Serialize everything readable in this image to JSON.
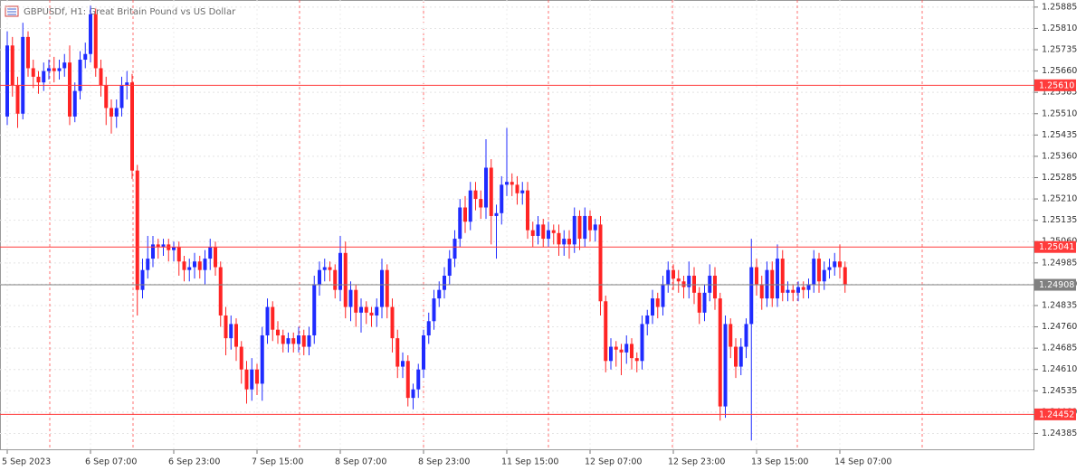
{
  "chart_data": {
    "type": "candlestick",
    "title": "GBPUSDf, H1:  Great Britain Pound vs US Dollar",
    "up_color": "#1f2bff",
    "down_color": "#ff2424",
    "grid": true,
    "ylim": [
      1.24326,
      1.2591
    ],
    "yticks": [
      1.25885,
      {
        "value": 1.2581,
        "label": "1.25810"
      },
      1.25735,
      {
        "value": 1.2566,
        "label": "1.25660"
      },
      1.25585,
      {
        "value": 1.2551,
        "label": "1.25510"
      },
      1.25435,
      {
        "value": 1.2536,
        "label": "1.25360"
      },
      1.25285,
      {
        "value": 1.2521,
        "label": "1.25210"
      },
      1.25135,
      {
        "value": 1.2506,
        "label": "1.25060"
      },
      1.24985,
      {
        "value": 1.2491,
        "label": "1.24910"
      },
      1.24835,
      {
        "value": 1.2476,
        "label": "1.24760"
      },
      1.24685,
      {
        "value": 1.2461,
        "label": "1.24610"
      },
      1.24535,
      {
        "value": 1.2446,
        "label": "1.24460"
      },
      1.24385
    ],
    "levels": [
      {
        "value": 1.2561,
        "label": "1.25610",
        "color": "#ff3b3b"
      },
      {
        "value": 1.25041,
        "label": "1.25041",
        "color": "#ff3b3b"
      },
      {
        "value": 1.24908,
        "label": "1.24908",
        "color": "#808080"
      },
      {
        "value": 1.24452,
        "label": "1.24452",
        "color": "#ff3b3b"
      }
    ],
    "categories": [
      "5 Sep 2023",
      null,
      null,
      null,
      null,
      null,
      null,
      null,
      null,
      null,
      null,
      null,
      null,
      null,
      null,
      null,
      "6 Sep 07:00",
      null,
      null,
      null,
      null,
      null,
      null,
      null,
      null,
      null,
      null,
      null,
      null,
      null,
      null,
      null,
      "6 Sep 23:00",
      null,
      null,
      null,
      null,
      null,
      null,
      null,
      null,
      null,
      null,
      null,
      null,
      null,
      null,
      null,
      "7 Sep 15:00",
      null,
      null,
      null,
      null,
      null,
      null,
      null,
      null,
      null,
      null,
      null,
      null,
      null,
      null,
      null,
      "8 Sep 07:00",
      null,
      null,
      null,
      null,
      null,
      null,
      null,
      null,
      null,
      null,
      null,
      null,
      null,
      null,
      null,
      "8 Sep 23:00",
      null,
      null,
      null,
      null,
      null,
      null,
      null,
      null,
      null,
      null,
      null,
      null,
      null,
      null,
      null,
      "11 Sep 15:00",
      null,
      null,
      null,
      null,
      null,
      null,
      null,
      null,
      null,
      null,
      null,
      null,
      null,
      null,
      null,
      "12 Sep 07:00",
      null,
      null,
      null,
      null,
      null,
      null,
      null,
      null,
      null,
      null,
      null,
      null,
      null,
      null,
      null,
      "12 Sep 23:00",
      null,
      null,
      null,
      null,
      null,
      null,
      null,
      null,
      null,
      null,
      null,
      null,
      null,
      null,
      null,
      "13 Sep 15:00",
      null,
      null,
      null,
      null,
      null,
      null,
      null,
      null,
      null,
      null,
      null,
      null,
      null,
      null,
      null,
      "14 Sep 07:00",
      null
    ],
    "open": [
      1.255,
      1.2575,
      1.2561,
      1.2551,
      1.2578,
      1.2567,
      1.2564,
      1.2562,
      1.2566,
      1.2567,
      1.2566,
      1.2567,
      1.2569,
      1.255,
      1.2559,
      1.257,
      1.2572,
      1.2586,
      1.2567,
      1.2561,
      1.2553,
      1.255,
      1.2553,
      1.2561,
      1.2562,
      1.2531,
      1.2489,
      1.2496,
      1.25,
      1.2505,
      1.2504,
      1.2505,
      1.2503,
      1.2504,
      1.2499,
      1.2496,
      1.2497,
      1.2499,
      1.2496,
      1.25,
      1.2504,
      1.2497,
      1.248,
      1.2472,
      1.2477,
      1.2469,
      1.2461,
      1.2454,
      1.2461,
      1.2456,
      1.2473,
      1.2483,
      1.2475,
      1.2473,
      1.247,
      1.2472,
      1.247,
      1.2473,
      1.2469,
      1.2473,
      1.2491,
      1.2496,
      1.2497,
      1.2496,
      1.2489,
      1.2502,
      1.2483,
      1.2489,
      1.2481,
      1.2483,
      1.2481,
      1.248,
      1.2483,
      1.2496,
      1.2483,
      1.2472,
      1.2462,
      1.2464,
      1.2451,
      1.2454,
      1.2461,
      1.2473,
      1.2478,
      1.2486,
      1.2489,
      1.2494,
      1.25,
      1.2507,
      1.2518,
      1.2513,
      1.2524,
      1.2521,
      1.2518,
      1.2532,
      1.2515,
      1.2516,
      1.2526,
      1.2527,
      1.2526,
      1.2523,
      1.2524,
      1.251,
      1.2508,
      1.2512,
      1.2507,
      1.251,
      1.2509,
      1.2505,
      1.2507,
      1.2505,
      1.2515,
      1.2507,
      1.2515,
      1.251,
      1.2512,
      1.2485,
      1.2464,
      1.2469,
      1.2468,
      1.2467,
      1.247,
      1.2465,
      1.2464,
      1.2477,
      1.248,
      1.2486,
      1.2483,
      1.2491,
      1.2496,
      1.2493,
      1.2492,
      1.249,
      1.2494,
      1.2488,
      1.2481,
      1.2488,
      1.2494,
      1.2486,
      1.2448,
      1.2477,
      1.2469,
      1.2462,
      1.2469,
      1.2477,
      1.2497,
      1.2491,
      1.2486,
      1.2496,
      1.2486,
      1.25,
      1.2488,
      1.2489,
      1.2488,
      1.249,
      1.2489,
      1.2491,
      1.25,
      1.2492,
      1.2496,
      1.2497,
      1.2499,
      1.2497
    ],
    "high": [
      1.258,
      1.2578,
      1.2564,
      1.2583,
      1.258,
      1.257,
      1.2566,
      1.2569,
      1.257,
      1.2571,
      1.257,
      1.2572,
      1.2575,
      1.2562,
      1.2573,
      1.2576,
      1.2589,
      1.2588,
      1.257,
      1.2564,
      1.2556,
      1.2556,
      1.2564,
      1.2566,
      1.2565,
      1.2533,
      1.25,
      1.2508,
      1.2508,
      1.2507,
      1.2507,
      1.2507,
      1.2506,
      1.2506,
      1.2501,
      1.25,
      1.2502,
      1.2501,
      1.2503,
      1.2507,
      1.2506,
      1.2499,
      1.2483,
      1.248,
      1.2479,
      1.2471,
      1.2464,
      1.2465,
      1.2463,
      1.2476,
      1.2486,
      1.2485,
      1.2478,
      1.2475,
      1.2474,
      1.2474,
      1.2476,
      1.2475,
      1.2476,
      1.2494,
      1.2499,
      1.25,
      1.2499,
      1.2498,
      1.2508,
      1.2506,
      1.2492,
      1.2491,
      1.2486,
      1.2485,
      1.2483,
      1.2486,
      1.25,
      1.2498,
      1.2486,
      1.2475,
      1.2467,
      1.2466,
      1.2456,
      1.2463,
      1.2475,
      1.2481,
      1.2489,
      1.2492,
      1.2497,
      1.2503,
      1.251,
      1.2521,
      1.2522,
      1.2527,
      1.2527,
      1.2524,
      1.2542,
      1.2535,
      1.2519,
      1.2529,
      1.2546,
      1.253,
      1.2529,
      1.2527,
      1.2527,
      1.2513,
      1.2515,
      1.2514,
      1.2513,
      1.2512,
      1.2512,
      1.251,
      1.251,
      1.2518,
      1.2517,
      1.2518,
      1.2517,
      1.2514,
      1.2515,
      1.2487,
      1.2472,
      1.2471,
      1.247,
      1.2473,
      1.2472,
      1.2467,
      1.248,
      1.2482,
      1.2489,
      1.2488,
      1.2494,
      1.2499,
      1.2498,
      1.2496,
      1.2494,
      1.2499,
      1.2497,
      1.249,
      1.2491,
      1.2498,
      1.2497,
      1.2488,
      1.248,
      1.2479,
      1.2472,
      1.2472,
      1.2479,
      1.2507,
      1.25,
      1.2494,
      1.2499,
      1.2499,
      1.2505,
      1.2503,
      1.2492,
      1.2491,
      1.2492,
      1.2492,
      1.2493,
      1.2503,
      1.2502,
      1.2499,
      1.25,
      1.2502,
      1.2505,
      1.2499
    ],
    "low": [
      1.2547,
      1.2557,
      1.2546,
      1.2549,
      1.2564,
      1.256,
      1.2558,
      1.2559,
      1.2563,
      1.2562,
      1.2563,
      1.2564,
      1.2547,
      1.2548,
      1.2556,
      1.2567,
      1.2569,
      1.2564,
      1.2557,
      1.2547,
      1.2544,
      1.2546,
      1.255,
      1.2556,
      1.2528,
      1.248,
      1.2486,
      1.2493,
      1.2497,
      1.25,
      1.2501,
      1.2499,
      1.2499,
      1.2494,
      1.2492,
      1.2492,
      1.2493,
      1.2493,
      1.2491,
      1.2496,
      1.2494,
      1.2476,
      1.2466,
      1.2468,
      1.2464,
      1.2456,
      1.2449,
      1.245,
      1.2452,
      1.245,
      1.247,
      1.2471,
      1.247,
      1.2467,
      1.2467,
      1.2467,
      1.2467,
      1.2466,
      1.2466,
      1.247,
      1.2487,
      1.2492,
      1.2492,
      1.2486,
      1.2485,
      1.2479,
      1.2478,
      1.2476,
      1.2474,
      1.2477,
      1.2476,
      1.2476,
      1.2479,
      1.2479,
      1.2467,
      1.2458,
      1.2458,
      1.2448,
      1.2447,
      1.2451,
      1.2458,
      1.247,
      1.2475,
      1.2483,
      1.2486,
      1.2491,
      1.2497,
      1.2504,
      1.2509,
      1.251,
      1.2517,
      1.2514,
      1.2514,
      1.2505,
      1.25,
      1.2512,
      1.2522,
      1.2522,
      1.2519,
      1.2519,
      1.2507,
      1.2504,
      1.2505,
      1.2504,
      1.2504,
      1.2505,
      1.2501,
      1.2501,
      1.25,
      1.2502,
      1.2503,
      1.2504,
      1.2506,
      1.2506,
      1.248,
      1.246,
      1.2461,
      1.2462,
      1.2459,
      1.2463,
      1.2461,
      1.246,
      1.2461,
      1.2473,
      1.2477,
      1.2479,
      1.248,
      1.2488,
      1.2489,
      1.2488,
      1.2486,
      1.2486,
      1.2484,
      1.2477,
      1.2478,
      1.2485,
      1.2482,
      1.2443,
      1.2444,
      1.2465,
      1.2458,
      1.2459,
      1.2465,
      1.2436,
      1.2487,
      1.2482,
      1.2483,
      1.2483,
      1.2483,
      1.2485,
      1.2485,
      1.2485,
      1.2485,
      1.2486,
      1.2486,
      1.2488,
      1.2488,
      1.2489,
      1.2493,
      1.2494,
      1.2493,
      1.2488
    ],
    "close": [
      1.2575,
      1.2561,
      1.2551,
      1.2578,
      1.2567,
      1.2564,
      1.2562,
      1.2566,
      1.2567,
      1.2566,
      1.2567,
      1.2569,
      1.255,
      1.2559,
      1.257,
      1.2572,
      1.2586,
      1.2567,
      1.2561,
      1.2553,
      1.255,
      1.2553,
      1.2561,
      1.2562,
      1.2531,
      1.2489,
      1.2496,
      1.25,
      1.2505,
      1.2504,
      1.2505,
      1.2503,
      1.2504,
      1.2499,
      1.2496,
      1.2497,
      1.2499,
      1.2496,
      1.25,
      1.2504,
      1.2497,
      1.248,
      1.2472,
      1.2477,
      1.2469,
      1.2461,
      1.2454,
      1.2461,
      1.2456,
      1.2473,
      1.2483,
      1.2475,
      1.2473,
      1.247,
      1.2472,
      1.247,
      1.2473,
      1.2469,
      1.2473,
      1.2491,
      1.2496,
      1.2497,
      1.2496,
      1.2489,
      1.2502,
      1.2483,
      1.2489,
      1.2481,
      1.2483,
      1.2481,
      1.248,
      1.2483,
      1.2496,
      1.2483,
      1.2472,
      1.2462,
      1.2464,
      1.2451,
      1.2454,
      1.2461,
      1.2473,
      1.2478,
      1.2486,
      1.2489,
      1.2494,
      1.25,
      1.2507,
      1.2518,
      1.2513,
      1.2524,
      1.2521,
      1.2518,
      1.2532,
      1.2515,
      1.2516,
      1.2526,
      1.2527,
      1.2526,
      1.2523,
      1.2524,
      1.251,
      1.2508,
      1.2512,
      1.2507,
      1.251,
      1.2509,
      1.2505,
      1.2507,
      1.2505,
      1.2515,
      1.2507,
      1.2515,
      1.251,
      1.2512,
      1.2485,
      1.2464,
      1.2469,
      1.2468,
      1.2467,
      1.247,
      1.2465,
      1.2464,
      1.2477,
      1.248,
      1.2486,
      1.2483,
      1.2491,
      1.2496,
      1.2493,
      1.2492,
      1.249,
      1.2494,
      1.2488,
      1.2481,
      1.2488,
      1.2494,
      1.2486,
      1.2448,
      1.2477,
      1.2469,
      1.2462,
      1.2469,
      1.2477,
      1.2497,
      1.2491,
      1.2486,
      1.2496,
      1.2486,
      1.25,
      1.2488,
      1.2489,
      1.2488,
      1.249,
      1.2489,
      1.2491,
      1.25,
      1.2492,
      1.2496,
      1.2497,
      1.2499,
      1.2497,
      1.2491
    ]
  }
}
